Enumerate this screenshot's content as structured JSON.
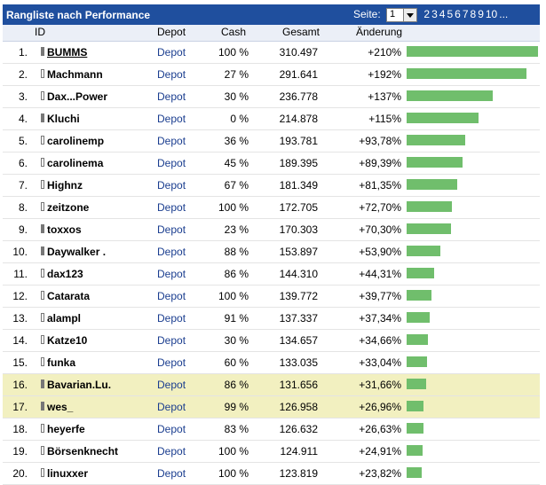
{
  "panel": {
    "title": "Rangliste nach Performance",
    "pager": {
      "label": "Seite:",
      "selected_page": "1",
      "pages": [
        "2",
        "3",
        "4",
        "5",
        "6",
        "7",
        "8",
        "9",
        "10",
        "..."
      ]
    }
  },
  "columns": {
    "id": "ID",
    "depot": "Depot",
    "cash": "Cash",
    "gesamt": "Gesamt",
    "aenderung": "Änderung"
  },
  "colors": {
    "title_bar": "#1f4f9e",
    "bar": "#70be6c",
    "highlight_row": "#f2f0c0",
    "link": "#1a3d8f"
  },
  "rows": [
    {
      "rank": "1.",
      "name": "BUMMS",
      "depot": "Depot",
      "cash": "100 %",
      "gesamt": "310.497",
      "change": "+210%",
      "change_pct": 210,
      "highlight": false,
      "icon_filled": true,
      "underline": true
    },
    {
      "rank": "2.",
      "name": "Machmann",
      "depot": "Depot",
      "cash": "27 %",
      "gesamt": "291.641",
      "change": "+192%",
      "change_pct": 192,
      "highlight": false,
      "icon_filled": false,
      "underline": false
    },
    {
      "rank": "3.",
      "name": "Dax...Power",
      "depot": "Depot",
      "cash": "30 %",
      "gesamt": "236.778",
      "change": "+137%",
      "change_pct": 137,
      "highlight": false,
      "icon_filled": false,
      "underline": false
    },
    {
      "rank": "4.",
      "name": "Kluchi",
      "depot": "Depot",
      "cash": "0 %",
      "gesamt": "214.878",
      "change": "+115%",
      "change_pct": 115,
      "highlight": false,
      "icon_filled": true,
      "underline": false
    },
    {
      "rank": "5.",
      "name": "carolinemp",
      "depot": "Depot",
      "cash": "36 %",
      "gesamt": "193.781",
      "change": "+93,78%",
      "change_pct": 93.78,
      "highlight": false,
      "icon_filled": false,
      "underline": false
    },
    {
      "rank": "6.",
      "name": "carolinema",
      "depot": "Depot",
      "cash": "45 %",
      "gesamt": "189.395",
      "change": "+89,39%",
      "change_pct": 89.39,
      "highlight": false,
      "icon_filled": false,
      "underline": false
    },
    {
      "rank": "7.",
      "name": "Highnz",
      "depot": "Depot",
      "cash": "67 %",
      "gesamt": "181.349",
      "change": "+81,35%",
      "change_pct": 81.35,
      "highlight": false,
      "icon_filled": false,
      "underline": false
    },
    {
      "rank": "8.",
      "name": "zeitzone",
      "depot": "Depot",
      "cash": "100 %",
      "gesamt": "172.705",
      "change": "+72,70%",
      "change_pct": 72.7,
      "highlight": false,
      "icon_filled": false,
      "underline": false
    },
    {
      "rank": "9.",
      "name": "toxxos",
      "depot": "Depot",
      "cash": "23 %",
      "gesamt": "170.303",
      "change": "+70,30%",
      "change_pct": 70.3,
      "highlight": false,
      "icon_filled": true,
      "underline": false
    },
    {
      "rank": "10.",
      "name": "Daywalker .",
      "depot": "Depot",
      "cash": "88 %",
      "gesamt": "153.897",
      "change": "+53,90%",
      "change_pct": 53.9,
      "highlight": false,
      "icon_filled": true,
      "underline": false
    },
    {
      "rank": "11.",
      "name": "dax123",
      "depot": "Depot",
      "cash": "86 %",
      "gesamt": "144.310",
      "change": "+44,31%",
      "change_pct": 44.31,
      "highlight": false,
      "icon_filled": false,
      "underline": false
    },
    {
      "rank": "12.",
      "name": "Catarata",
      "depot": "Depot",
      "cash": "100 %",
      "gesamt": "139.772",
      "change": "+39,77%",
      "change_pct": 39.77,
      "highlight": false,
      "icon_filled": false,
      "underline": false
    },
    {
      "rank": "13.",
      "name": "alampl",
      "depot": "Depot",
      "cash": "91 %",
      "gesamt": "137.337",
      "change": "+37,34%",
      "change_pct": 37.34,
      "highlight": false,
      "icon_filled": false,
      "underline": false
    },
    {
      "rank": "14.",
      "name": "Katze10",
      "depot": "Depot",
      "cash": "30 %",
      "gesamt": "134.657",
      "change": "+34,66%",
      "change_pct": 34.66,
      "highlight": false,
      "icon_filled": false,
      "underline": false
    },
    {
      "rank": "15.",
      "name": "funka",
      "depot": "Depot",
      "cash": "60 %",
      "gesamt": "133.035",
      "change": "+33,04%",
      "change_pct": 33.04,
      "highlight": false,
      "icon_filled": false,
      "underline": false
    },
    {
      "rank": "16.",
      "name": "Bavarian.Lu.",
      "depot": "Depot",
      "cash": "86 %",
      "gesamt": "131.656",
      "change": "+31,66%",
      "change_pct": 31.66,
      "highlight": true,
      "icon_filled": true,
      "underline": false
    },
    {
      "rank": "17.",
      "name": "wes_",
      "depot": "Depot",
      "cash": "99 %",
      "gesamt": "126.958",
      "change": "+26,96%",
      "change_pct": 26.96,
      "highlight": true,
      "icon_filled": true,
      "underline": false
    },
    {
      "rank": "18.",
      "name": "heyerfe",
      "depot": "Depot",
      "cash": "83 %",
      "gesamt": "126.632",
      "change": "+26,63%",
      "change_pct": 26.63,
      "highlight": false,
      "icon_filled": false,
      "underline": false
    },
    {
      "rank": "19.",
      "name": "Börsenknecht",
      "depot": "Depot",
      "cash": "100 %",
      "gesamt": "124.911",
      "change": "+24,91%",
      "change_pct": 24.91,
      "highlight": false,
      "icon_filled": false,
      "underline": false
    },
    {
      "rank": "20.",
      "name": "linuxxer",
      "depot": "Depot",
      "cash": "100 %",
      "gesamt": "123.819",
      "change": "+23,82%",
      "change_pct": 23.82,
      "highlight": false,
      "icon_filled": false,
      "underline": false
    }
  ]
}
